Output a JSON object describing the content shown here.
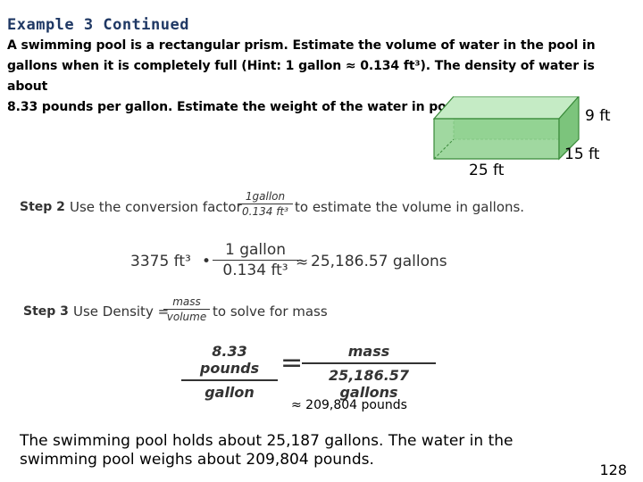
{
  "slide": {
    "title": "Example 3 Continued",
    "problem_line1": "A swimming pool is a rectangular prism. Estimate the volume of water in the pool in",
    "problem_line2": "gallons when it is completely full (Hint: 1 gallon ≈ 0.134 ft³). The density of water is about",
    "problem_line3": "8.33 pounds per gallon. Estimate the weight of the water in pounds.",
    "figure": {
      "height_label": "9 ft",
      "width_label": "15 ft",
      "length_label": "25 ft",
      "fill_color": "#8fd18f",
      "edge_color": "#3a8a3a"
    },
    "step2": {
      "label": "Step 2",
      "text_before": "Use the conversion factor",
      "factor_num": "1gallon",
      "factor_den": "0.134 ft³",
      "text_after": "to estimate the volume in gallons."
    },
    "calc1": {
      "volume": "3375 ft³",
      "dot": "•",
      "frac_num": "1 gallon",
      "frac_den": "0.134 ft³",
      "approx": "≈",
      "result": "25,186.57 gallons"
    },
    "step3": {
      "label": "Step 3",
      "text_before": "Use Density =",
      "density_num": "mass",
      "density_den": "volume",
      "text_after": "to solve for mass"
    },
    "proportion": {
      "left_num": "8.33 pounds",
      "left_den": "gallon",
      "equals": "=",
      "right_num": "mass",
      "right_den": "25,186.57 gallons"
    },
    "result_line": "≈ 209,804 pounds",
    "conclusion_line1": "The swimming pool holds about 25,187 gallons. The water in the",
    "conclusion_line2": "swimming pool weighs about 209,804 pounds.",
    "page_number": "128"
  }
}
